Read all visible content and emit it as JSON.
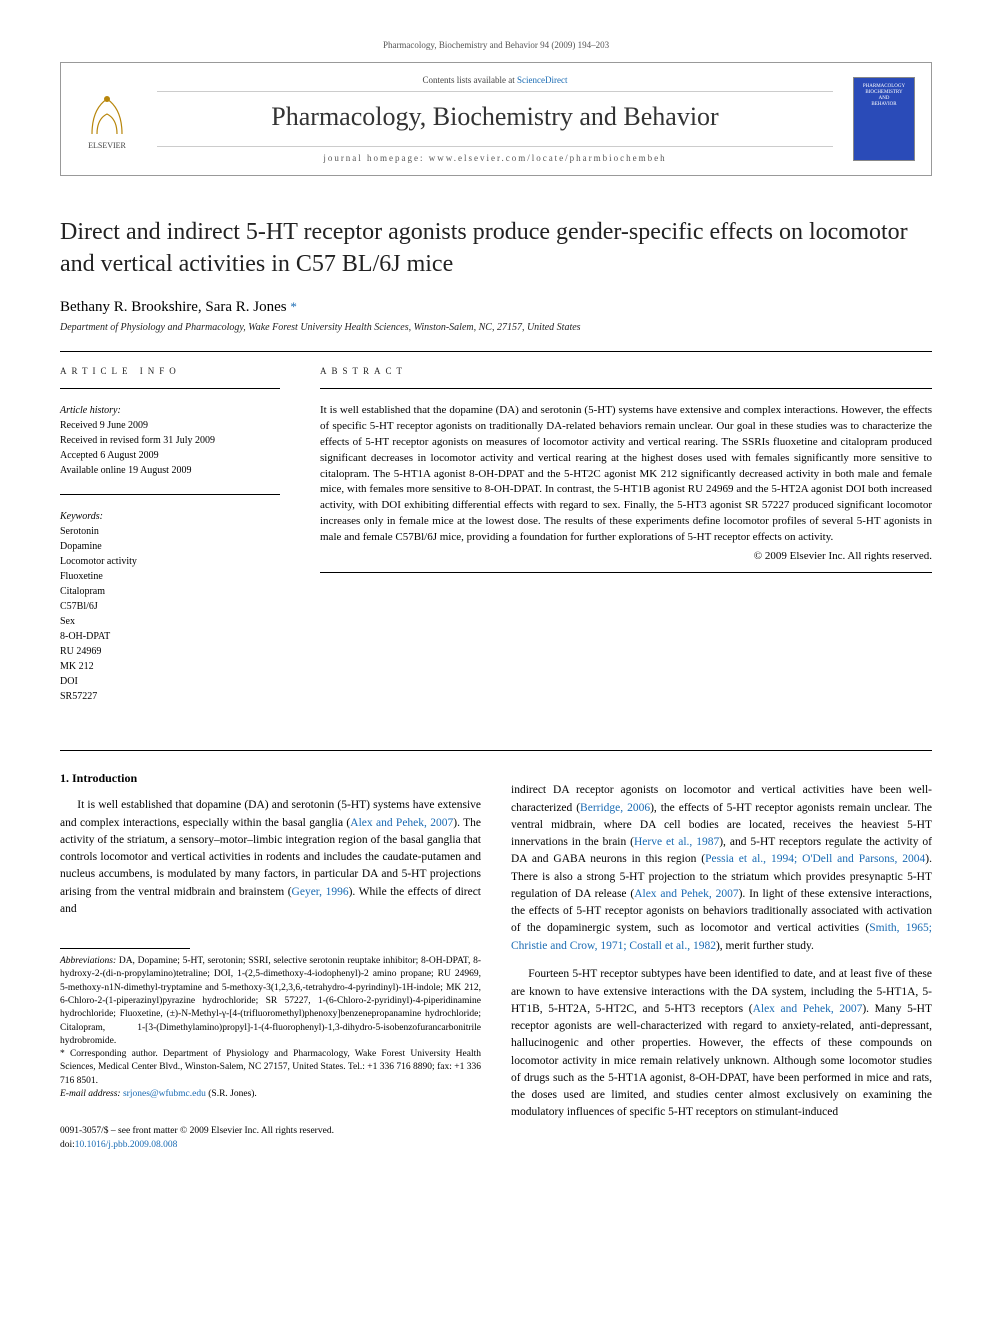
{
  "header_bar": "Pharmacology, Biochemistry and Behavior 94 (2009) 194–203",
  "masthead": {
    "contents_prefix": "Contents lists available at ",
    "contents_link": "ScienceDirect",
    "journal_name": "Pharmacology, Biochemistry and Behavior",
    "homepage_prefix": "journal homepage: ",
    "homepage_url": "www.elsevier.com/locate/pharmbiochembeh",
    "publisher_logo_text": "ELSEVIER",
    "cover_line1": "PHARMACOLOGY",
    "cover_line2": "BIOCHEMISTRY",
    "cover_line3": "AND",
    "cover_line4": "BEHAVIOR"
  },
  "title": "Direct and indirect 5-HT receptor agonists produce gender-specific effects on locomotor and vertical activities in C57 BL/6J mice",
  "authors": "Bethany R. Brookshire, Sara R. Jones ",
  "corr_mark": "*",
  "affiliation": "Department of Physiology and Pharmacology, Wake Forest University Health Sciences, Winston-Salem, NC, 27157, United States",
  "article_info": {
    "heading": "ARTICLE INFO",
    "history_label": "Article history:",
    "history": [
      "Received 9 June 2009",
      "Received in revised form 31 July 2009",
      "Accepted 6 August 2009",
      "Available online 19 August 2009"
    ],
    "keywords_label": "Keywords:",
    "keywords": [
      "Serotonin",
      "Dopamine",
      "Locomotor activity",
      "Fluoxetine",
      "Citalopram",
      "C57Bl/6J",
      "Sex",
      "8-OH-DPAT",
      "RU 24969",
      "MK 212",
      "DOI",
      "SR57227"
    ]
  },
  "abstract": {
    "heading": "ABSTRACT",
    "text": "It is well established that the dopamine (DA) and serotonin (5-HT) systems have extensive and complex interactions. However, the effects of specific 5-HT receptor agonists on traditionally DA-related behaviors remain unclear. Our goal in these studies was to characterize the effects of 5-HT receptor agonists on measures of locomotor activity and vertical rearing. The SSRIs fluoxetine and citalopram produced significant decreases in locomotor activity and vertical rearing at the highest doses used with females significantly more sensitive to citalopram. The 5-HT1A agonist 8-OH-DPAT and the 5-HT2C agonist MK 212 significantly decreased activity in both male and female mice, with females more sensitive to 8-OH-DPAT. In contrast, the 5-HT1B agonist RU 24969 and the 5-HT2A agonist DOI both increased activity, with DOI exhibiting differential effects with regard to sex. Finally, the 5-HT3 agonist SR 57227 produced significant locomotor increases only in female mice at the lowest dose. The results of these experiments define locomotor profiles of several 5-HT agonists in male and female C57Bl/6J mice, providing a foundation for further explorations of 5-HT receptor effects on activity.",
    "copyright": "© 2009 Elsevier Inc. All rights reserved."
  },
  "body": {
    "intro_heading": "1. Introduction",
    "left_para": "It is well established that dopamine (DA) and serotonin (5-HT) systems have extensive and complex interactions, especially within the basal ganglia (Alex and Pehek, 2007). The activity of the striatum, a sensory–motor–limbic integration region of the basal ganglia that controls locomotor and vertical activities in rodents and includes the caudate-putamen and nucleus accumbens, is modulated by many factors, in particular DA and 5-HT projections arising from the ventral midbrain and brainstem (Geyer, 1996). While the effects of direct and",
    "right_para1": "indirect DA receptor agonists on locomotor and vertical activities have been well-characterized (Berridge, 2006), the effects of 5-HT receptor agonists remain unclear. The ventral midbrain, where DA cell bodies are located, receives the heaviest 5-HT innervations in the brain (Herve et al., 1987), and 5-HT receptors regulate the activity of DA and GABA neurons in this region (Pessia et al., 1994; O'Dell and Parsons, 2004). There is also a strong 5-HT projection to the striatum which provides presynaptic 5-HT regulation of DA release (Alex and Pehek, 2007). In light of these extensive interactions, the effects of 5-HT receptor agonists on behaviors traditionally associated with activation of the dopaminergic system, such as locomotor and vertical activities (Smith, 1965; Christie and Crow, 1971; Costall et al., 1982), merit further study.",
    "right_para2": "Fourteen 5-HT receptor subtypes have been identified to date, and at least five of these are known to have extensive interactions with the DA system, including the 5-HT1A, 5-HT1B, 5-HT2A, 5-HT2C, and 5-HT3 receptors (Alex and Pehek, 2007). Many 5-HT receptor agonists are well-characterized with regard to anxiety-related, anti-depressant, hallucinogenic and other properties. However, the effects of these compounds on locomotor activity in mice remain relatively unknown. Although some locomotor studies of drugs such as the 5-HT1A agonist, 8-OH-DPAT, have been performed in mice and rats, the doses used are limited, and studies center almost exclusively on examining the modulatory influences of specific 5-HT receptors on stimulant-induced"
  },
  "footnotes": {
    "abbrev_label": "Abbreviations:",
    "abbrev_text": " DA, Dopamine; 5-HT, serotonin; SSRI, selective serotonin reuptake inhibitor; 8-OH-DPAT, 8-hydroxy-2-(di-n-propylamino)tetraline; DOI, 1-(2,5-dimethoxy-4-iodophenyl)-2 amino propane; RU 24969, 5-methoxy-n1N-dimethyl-tryptamine and 5-methoxy-3(1,2,3,6,-tetrahydro-4-pyrindinyl)-1H-indole; MK 212, 6-Chloro-2-(1-piperazinyl)pyrazine hydrochloride; SR 57227, 1-(6-Chloro-2-pyridinyl)-4-piperidinamine hydrochloride; Fluoxetine, (±)-N-Methyl-γ-[4-(trifluoromethyl)phenoxy]benzenepropanamine hydrochloride; Citalopram, 1-[3-(Dimethylamino)propyl]-1-(4-fluorophenyl)-1,3-dihydro-5-isobenzofurancarbonitrile hydrobromide.",
    "corr_label": "* Corresponding author.",
    "corr_text": " Department of Physiology and Pharmacology, Wake Forest University Health Sciences, Medical Center Blvd., Winston-Salem, NC 27157, United States. Tel.: +1 336 716 8890; fax: +1 336 716 8501.",
    "email_label": "E-mail address:",
    "email_value": " srjones@wfubmc.edu",
    "email_suffix": " (S.R. Jones)."
  },
  "footer": {
    "front_matter": "0091-3057/$ – see front matter © 2009 Elsevier Inc. All rights reserved.",
    "doi_label": "doi:",
    "doi_value": "10.1016/j.pbb.2009.08.008"
  },
  "colors": {
    "link": "#1a6bb3",
    "text": "#000000",
    "cover_bg": "#2a4bb8"
  }
}
